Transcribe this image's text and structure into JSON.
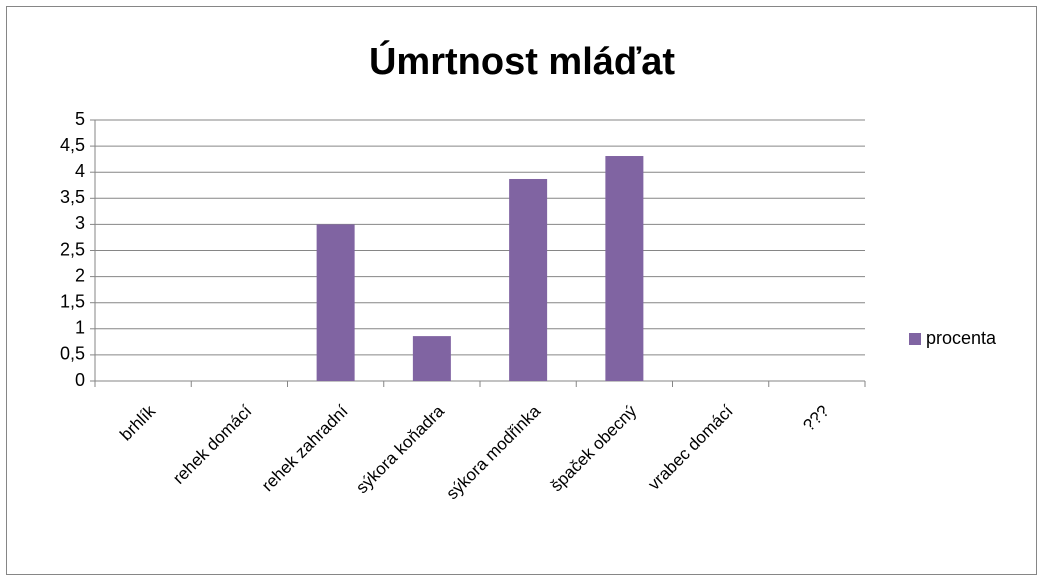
{
  "chart_data": {
    "type": "bar",
    "title": "Úmrtnost mláďat",
    "categories": [
      "brhlík",
      "rehek domácí",
      "rehek zahradní",
      "sýkora koňadra",
      "sýkora modřinka",
      "špaček obecný",
      "vrabec domácí",
      "???"
    ],
    "series": [
      {
        "name": "procenta",
        "color": "#8064a2",
        "values": [
          0,
          0,
          3,
          0.86,
          3.87,
          4.31,
          0,
          0
        ]
      }
    ],
    "ylim": [
      0,
      5
    ],
    "yticks": [
      0,
      {
        "value": 0.5,
        "label": "0,5"
      },
      1,
      {
        "value": 1.5,
        "label": "1,5"
      },
      2,
      {
        "value": 2.5,
        "label": "2,5"
      },
      3,
      {
        "value": 3.5,
        "label": "3,5"
      },
      4,
      {
        "value": 4.5,
        "label": "4,5"
      },
      5
    ],
    "grid": true,
    "legend": "right"
  }
}
